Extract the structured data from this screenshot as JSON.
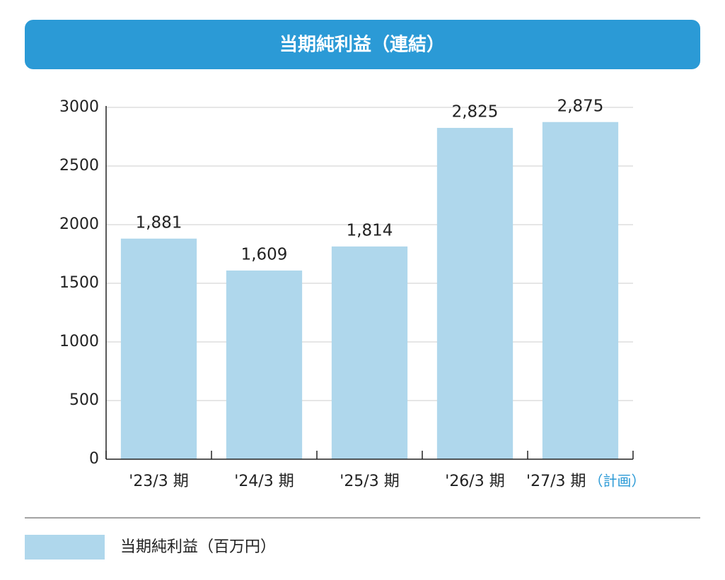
{
  "chart_data": {
    "type": "bar",
    "title": "当期純利益（連結）",
    "categories": [
      "'23/3 期",
      "'24/3 期",
      "'25/3 期",
      "'26/3 期",
      "'27/3 期"
    ],
    "annotation": "（計画）",
    "series": [
      {
        "name": "当期純利益（百万円）",
        "color": "#afd7ec",
        "values": [
          1881,
          1609,
          1814,
          2825,
          2875
        ],
        "value_labels": [
          "1,881",
          "1,609",
          "1,814",
          "2,825",
          "2,875"
        ]
      }
    ],
    "ylim": [
      0,
      3000
    ],
    "yticks": [
      0,
      500,
      1000,
      1500,
      2000,
      2500,
      3000
    ],
    "grid": true,
    "title_color": "#2b9ad6",
    "annotation_color": "#2b9ad6"
  }
}
